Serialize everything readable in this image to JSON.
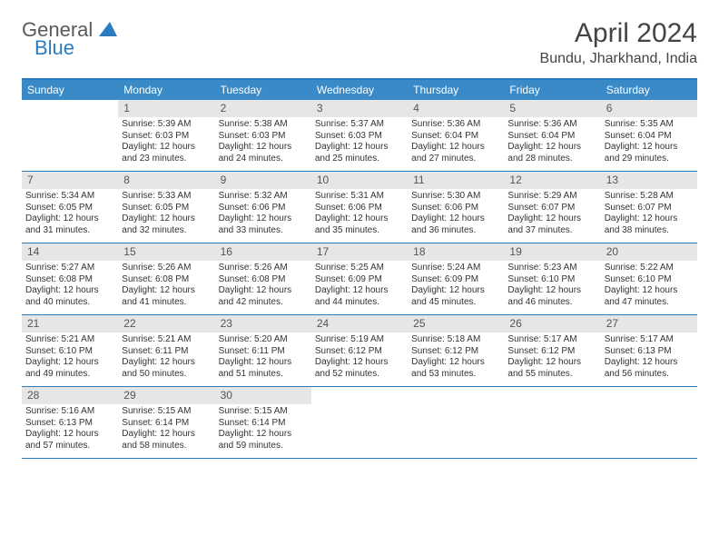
{
  "logo": {
    "general": "General",
    "blue": "Blue"
  },
  "title": "April 2024",
  "location": "Bundu, Jharkhand, India",
  "day_headers": [
    "Sunday",
    "Monday",
    "Tuesday",
    "Wednesday",
    "Thursday",
    "Friday",
    "Saturday"
  ],
  "colors": {
    "header_bg": "#3a8ac7",
    "border": "#2b7bbf",
    "date_bg": "#e6e6e6",
    "text": "#333333",
    "logo_gray": "#5a5a5a",
    "logo_blue": "#2b7bbf"
  },
  "weeks": [
    [
      {
        "n": "",
        "lines": []
      },
      {
        "n": "1",
        "lines": [
          "Sunrise: 5:39 AM",
          "Sunset: 6:03 PM",
          "Daylight: 12 hours and 23 minutes."
        ]
      },
      {
        "n": "2",
        "lines": [
          "Sunrise: 5:38 AM",
          "Sunset: 6:03 PM",
          "Daylight: 12 hours and 24 minutes."
        ]
      },
      {
        "n": "3",
        "lines": [
          "Sunrise: 5:37 AM",
          "Sunset: 6:03 PM",
          "Daylight: 12 hours and 25 minutes."
        ]
      },
      {
        "n": "4",
        "lines": [
          "Sunrise: 5:36 AM",
          "Sunset: 6:04 PM",
          "Daylight: 12 hours and 27 minutes."
        ]
      },
      {
        "n": "5",
        "lines": [
          "Sunrise: 5:36 AM",
          "Sunset: 6:04 PM",
          "Daylight: 12 hours and 28 minutes."
        ]
      },
      {
        "n": "6",
        "lines": [
          "Sunrise: 5:35 AM",
          "Sunset: 6:04 PM",
          "Daylight: 12 hours and 29 minutes."
        ]
      }
    ],
    [
      {
        "n": "7",
        "lines": [
          "Sunrise: 5:34 AM",
          "Sunset: 6:05 PM",
          "Daylight: 12 hours and 31 minutes."
        ]
      },
      {
        "n": "8",
        "lines": [
          "Sunrise: 5:33 AM",
          "Sunset: 6:05 PM",
          "Daylight: 12 hours and 32 minutes."
        ]
      },
      {
        "n": "9",
        "lines": [
          "Sunrise: 5:32 AM",
          "Sunset: 6:06 PM",
          "Daylight: 12 hours and 33 minutes."
        ]
      },
      {
        "n": "10",
        "lines": [
          "Sunrise: 5:31 AM",
          "Sunset: 6:06 PM",
          "Daylight: 12 hours and 35 minutes."
        ]
      },
      {
        "n": "11",
        "lines": [
          "Sunrise: 5:30 AM",
          "Sunset: 6:06 PM",
          "Daylight: 12 hours and 36 minutes."
        ]
      },
      {
        "n": "12",
        "lines": [
          "Sunrise: 5:29 AM",
          "Sunset: 6:07 PM",
          "Daylight: 12 hours and 37 minutes."
        ]
      },
      {
        "n": "13",
        "lines": [
          "Sunrise: 5:28 AM",
          "Sunset: 6:07 PM",
          "Daylight: 12 hours and 38 minutes."
        ]
      }
    ],
    [
      {
        "n": "14",
        "lines": [
          "Sunrise: 5:27 AM",
          "Sunset: 6:08 PM",
          "Daylight: 12 hours and 40 minutes."
        ]
      },
      {
        "n": "15",
        "lines": [
          "Sunrise: 5:26 AM",
          "Sunset: 6:08 PM",
          "Daylight: 12 hours and 41 minutes."
        ]
      },
      {
        "n": "16",
        "lines": [
          "Sunrise: 5:26 AM",
          "Sunset: 6:08 PM",
          "Daylight: 12 hours and 42 minutes."
        ]
      },
      {
        "n": "17",
        "lines": [
          "Sunrise: 5:25 AM",
          "Sunset: 6:09 PM",
          "Daylight: 12 hours and 44 minutes."
        ]
      },
      {
        "n": "18",
        "lines": [
          "Sunrise: 5:24 AM",
          "Sunset: 6:09 PM",
          "Daylight: 12 hours and 45 minutes."
        ]
      },
      {
        "n": "19",
        "lines": [
          "Sunrise: 5:23 AM",
          "Sunset: 6:10 PM",
          "Daylight: 12 hours and 46 minutes."
        ]
      },
      {
        "n": "20",
        "lines": [
          "Sunrise: 5:22 AM",
          "Sunset: 6:10 PM",
          "Daylight: 12 hours and 47 minutes."
        ]
      }
    ],
    [
      {
        "n": "21",
        "lines": [
          "Sunrise: 5:21 AM",
          "Sunset: 6:10 PM",
          "Daylight: 12 hours and 49 minutes."
        ]
      },
      {
        "n": "22",
        "lines": [
          "Sunrise: 5:21 AM",
          "Sunset: 6:11 PM",
          "Daylight: 12 hours and 50 minutes."
        ]
      },
      {
        "n": "23",
        "lines": [
          "Sunrise: 5:20 AM",
          "Sunset: 6:11 PM",
          "Daylight: 12 hours and 51 minutes."
        ]
      },
      {
        "n": "24",
        "lines": [
          "Sunrise: 5:19 AM",
          "Sunset: 6:12 PM",
          "Daylight: 12 hours and 52 minutes."
        ]
      },
      {
        "n": "25",
        "lines": [
          "Sunrise: 5:18 AM",
          "Sunset: 6:12 PM",
          "Daylight: 12 hours and 53 minutes."
        ]
      },
      {
        "n": "26",
        "lines": [
          "Sunrise: 5:17 AM",
          "Sunset: 6:12 PM",
          "Daylight: 12 hours and 55 minutes."
        ]
      },
      {
        "n": "27",
        "lines": [
          "Sunrise: 5:17 AM",
          "Sunset: 6:13 PM",
          "Daylight: 12 hours and 56 minutes."
        ]
      }
    ],
    [
      {
        "n": "28",
        "lines": [
          "Sunrise: 5:16 AM",
          "Sunset: 6:13 PM",
          "Daylight: 12 hours and 57 minutes."
        ]
      },
      {
        "n": "29",
        "lines": [
          "Sunrise: 5:15 AM",
          "Sunset: 6:14 PM",
          "Daylight: 12 hours and 58 minutes."
        ]
      },
      {
        "n": "30",
        "lines": [
          "Sunrise: 5:15 AM",
          "Sunset: 6:14 PM",
          "Daylight: 12 hours and 59 minutes."
        ]
      },
      {
        "n": "",
        "lines": []
      },
      {
        "n": "",
        "lines": []
      },
      {
        "n": "",
        "lines": []
      },
      {
        "n": "",
        "lines": []
      }
    ]
  ]
}
